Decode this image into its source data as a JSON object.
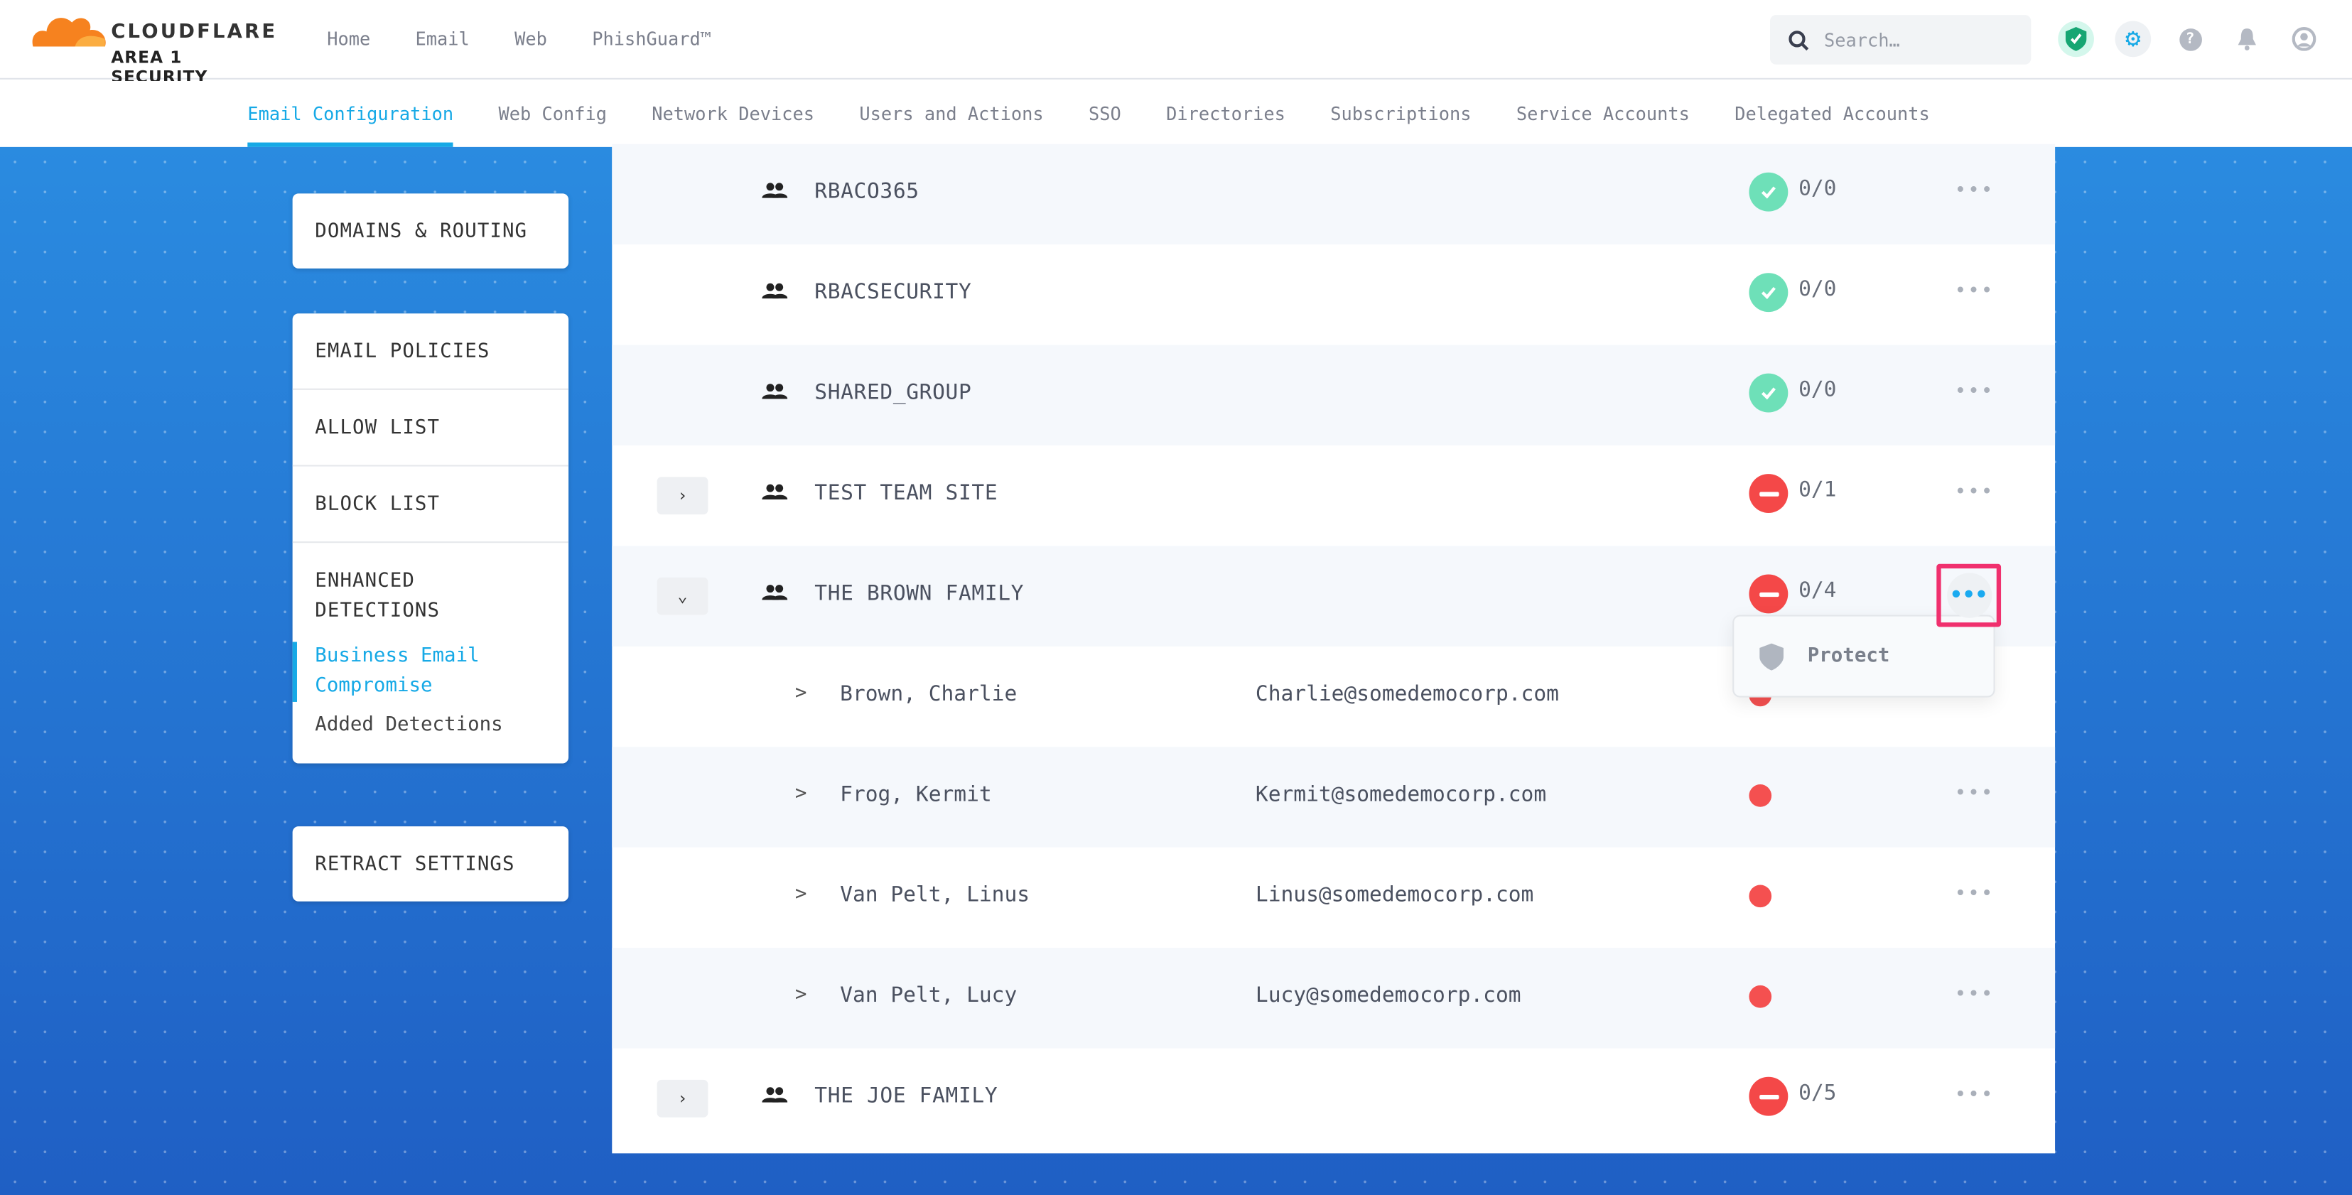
{
  "header": {
    "brand": "CLOUDFLARE",
    "brand_sub": "AREA 1 SECURITY",
    "nav": [
      "Home",
      "Email",
      "Web",
      "PhishGuard™"
    ],
    "search_placeholder": "Search…"
  },
  "subnav": [
    "Email Configuration",
    "Web Config",
    "Network Devices",
    "Users and Actions",
    "SSO",
    "Directories",
    "Subscriptions",
    "Service Accounts",
    "Delegated Accounts"
  ],
  "sidebar": {
    "domains": "DOMAINS & ROUTING",
    "policies": "EMAIL POLICIES",
    "allow": "ALLOW LIST",
    "block": "BLOCK LIST",
    "enhanced": "ENHANCED DETECTIONS",
    "bec": "Business Email Compromise",
    "added": "Added Detections",
    "retract": "RETRACT SETTINGS"
  },
  "colors": {
    "accent": "#16a9e6",
    "ok": "#6ee0b8",
    "bad": "#f44848",
    "highlight": "#f0306e"
  },
  "groups": [
    {
      "name": "RBACO365",
      "status": "ok",
      "count": "0/0",
      "expand": "none"
    },
    {
      "name": "RBACSECURITY",
      "status": "ok",
      "count": "0/0",
      "expand": "none"
    },
    {
      "name": "SHARED_GROUP",
      "status": "ok",
      "count": "0/0",
      "expand": "none"
    },
    {
      "name": "TEST TEAM SITE",
      "status": "bad",
      "count": "0/1",
      "expand": "collapsed"
    },
    {
      "name": "THE BROWN FAMILY",
      "status": "bad",
      "count": "0/4",
      "expand": "expanded"
    }
  ],
  "members": [
    {
      "name": "Brown, Charlie",
      "email": "Charlie@somedemocorp.com"
    },
    {
      "name": "Frog, Kermit",
      "email": "Kermit@somedemocorp.com"
    },
    {
      "name": "Van Pelt, Linus",
      "email": "Linus@somedemocorp.com"
    },
    {
      "name": "Van Pelt, Lucy",
      "email": "Lucy@somedemocorp.com"
    }
  ],
  "last_group": {
    "name": "THE JOE FAMILY",
    "status": "bad",
    "count": "0/5"
  },
  "menu": {
    "protect": "Protect"
  },
  "glyphs": {
    "chev_right": "›",
    "chev_down": "⌄",
    "member_chev": ">",
    "more": "•••"
  }
}
